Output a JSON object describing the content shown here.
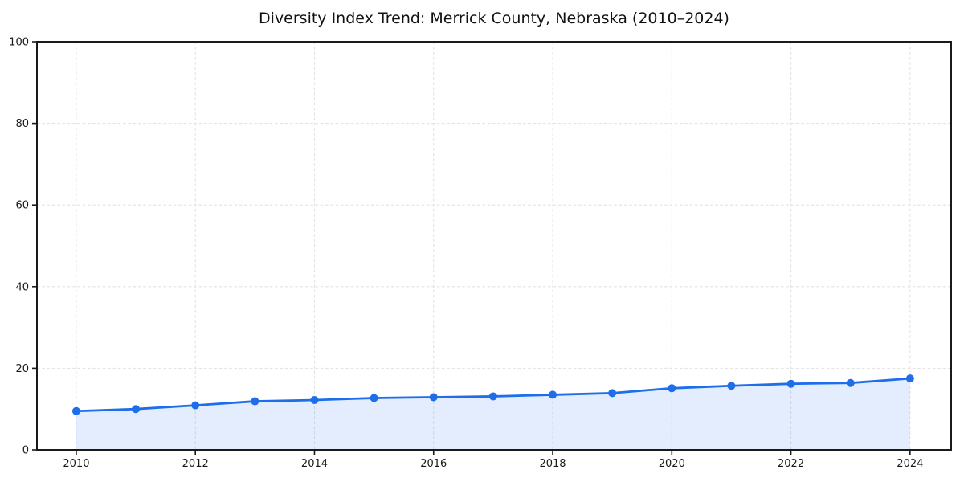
{
  "window": {
    "background": "#ffffff"
  },
  "chart_data": {
    "type": "line",
    "title": "Diversity Index Trend: Merrick County, Nebraska (2010–2024)",
    "xlabel": "",
    "ylabel": "",
    "x": [
      2010,
      2011,
      2012,
      2013,
      2014,
      2015,
      2016,
      2017,
      2018,
      2019,
      2020,
      2021,
      2022,
      2023,
      2024
    ],
    "series": [
      {
        "name": "Diversity Index",
        "values": [
          9.5,
          10.0,
          10.9,
          11.9,
          12.2,
          12.7,
          12.9,
          13.1,
          13.5,
          13.9,
          15.1,
          15.7,
          16.2,
          16.4,
          17.5
        ]
      }
    ],
    "xticks": [
      2010,
      2012,
      2014,
      2016,
      2018,
      2020,
      2022,
      2024
    ],
    "yticks": [
      0,
      20,
      40,
      60,
      80,
      100
    ],
    "xlim": [
      2009.34,
      2024.69
    ],
    "ylim": [
      0,
      100
    ],
    "grid": true,
    "grid_style": "dashed",
    "legend_position": "none",
    "marker": "circle",
    "area_fill": true,
    "colors": {
      "line": "#1E6EEB",
      "fill_opacity": 0.12,
      "grid": "#e3e3e3",
      "spine": "#1a1a1a",
      "tick_label": "#1a1a1a",
      "title": "#111111",
      "background": "#ffffff"
    }
  }
}
